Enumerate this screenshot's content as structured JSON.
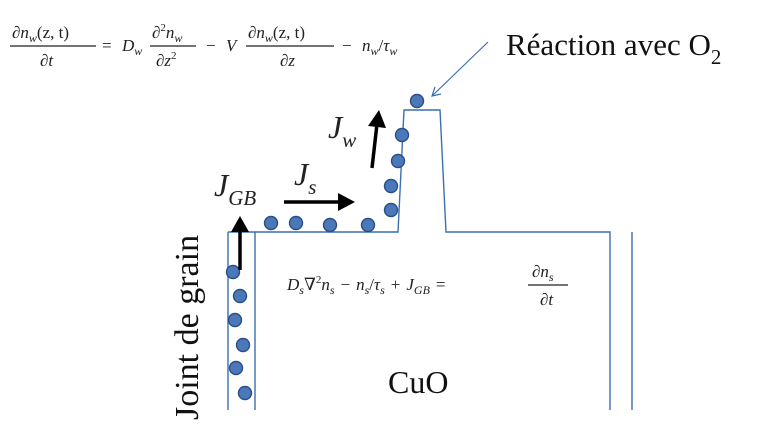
{
  "equations": {
    "top": {
      "lhs_num": "∂n",
      "lhs_num_sub": "w",
      "lhs_num_args": "(z, t)",
      "lhs_den": "∂t",
      "eq": "=",
      "d_coef": "D",
      "d_coef_sub": "w",
      "term2_num": "∂",
      "term2_num_sup": "2",
      "term2_num_var": "n",
      "term2_num_sub": "w",
      "term2_den": "∂z",
      "term2_den_sup": "2",
      "minus1": "−",
      "v_coef": "V",
      "term3_num": "∂n",
      "term3_num_sub": "w",
      "term3_num_args": "(z, t)",
      "term3_den": "∂z",
      "minus2": "−",
      "tail_n": "n",
      "tail_n_sub": "w",
      "tail_slash": "/",
      "tail_tau": "τ",
      "tail_tau_sub": "w"
    },
    "middle": {
      "d_coef": "D",
      "d_coef_sub": "s",
      "nabla": "∇",
      "nabla_sup": "2",
      "n": "n",
      "n_sub": "s",
      "minus": "−",
      "n2": "n",
      "n2_sub": "s",
      "slash": "/",
      "tau": "τ",
      "tau_sub": "s",
      "plus": "+",
      "j": "J",
      "j_sub": "GB",
      "eq": "=",
      "rhs_num": "∂n",
      "rhs_num_sub": "s",
      "rhs_den": "∂t"
    }
  },
  "labels": {
    "reaction": "Réaction avec O",
    "reaction_sub": "2",
    "grain_boundary": "Joint de grain",
    "material": "CuO",
    "flux_w": "J",
    "flux_w_sub": "w",
    "flux_gb": "J",
    "flux_gb_sub": "GB",
    "flux_s": "J",
    "flux_s_sub": "s"
  },
  "colors": {
    "outline": "#3a6fb0",
    "dot_fill": "#4a78b8",
    "dot_stroke": "#2a4f86",
    "arrow": "#000000"
  },
  "icons": {
    "flux_arrow": "arrow-icon",
    "atom": "circle-icon"
  }
}
